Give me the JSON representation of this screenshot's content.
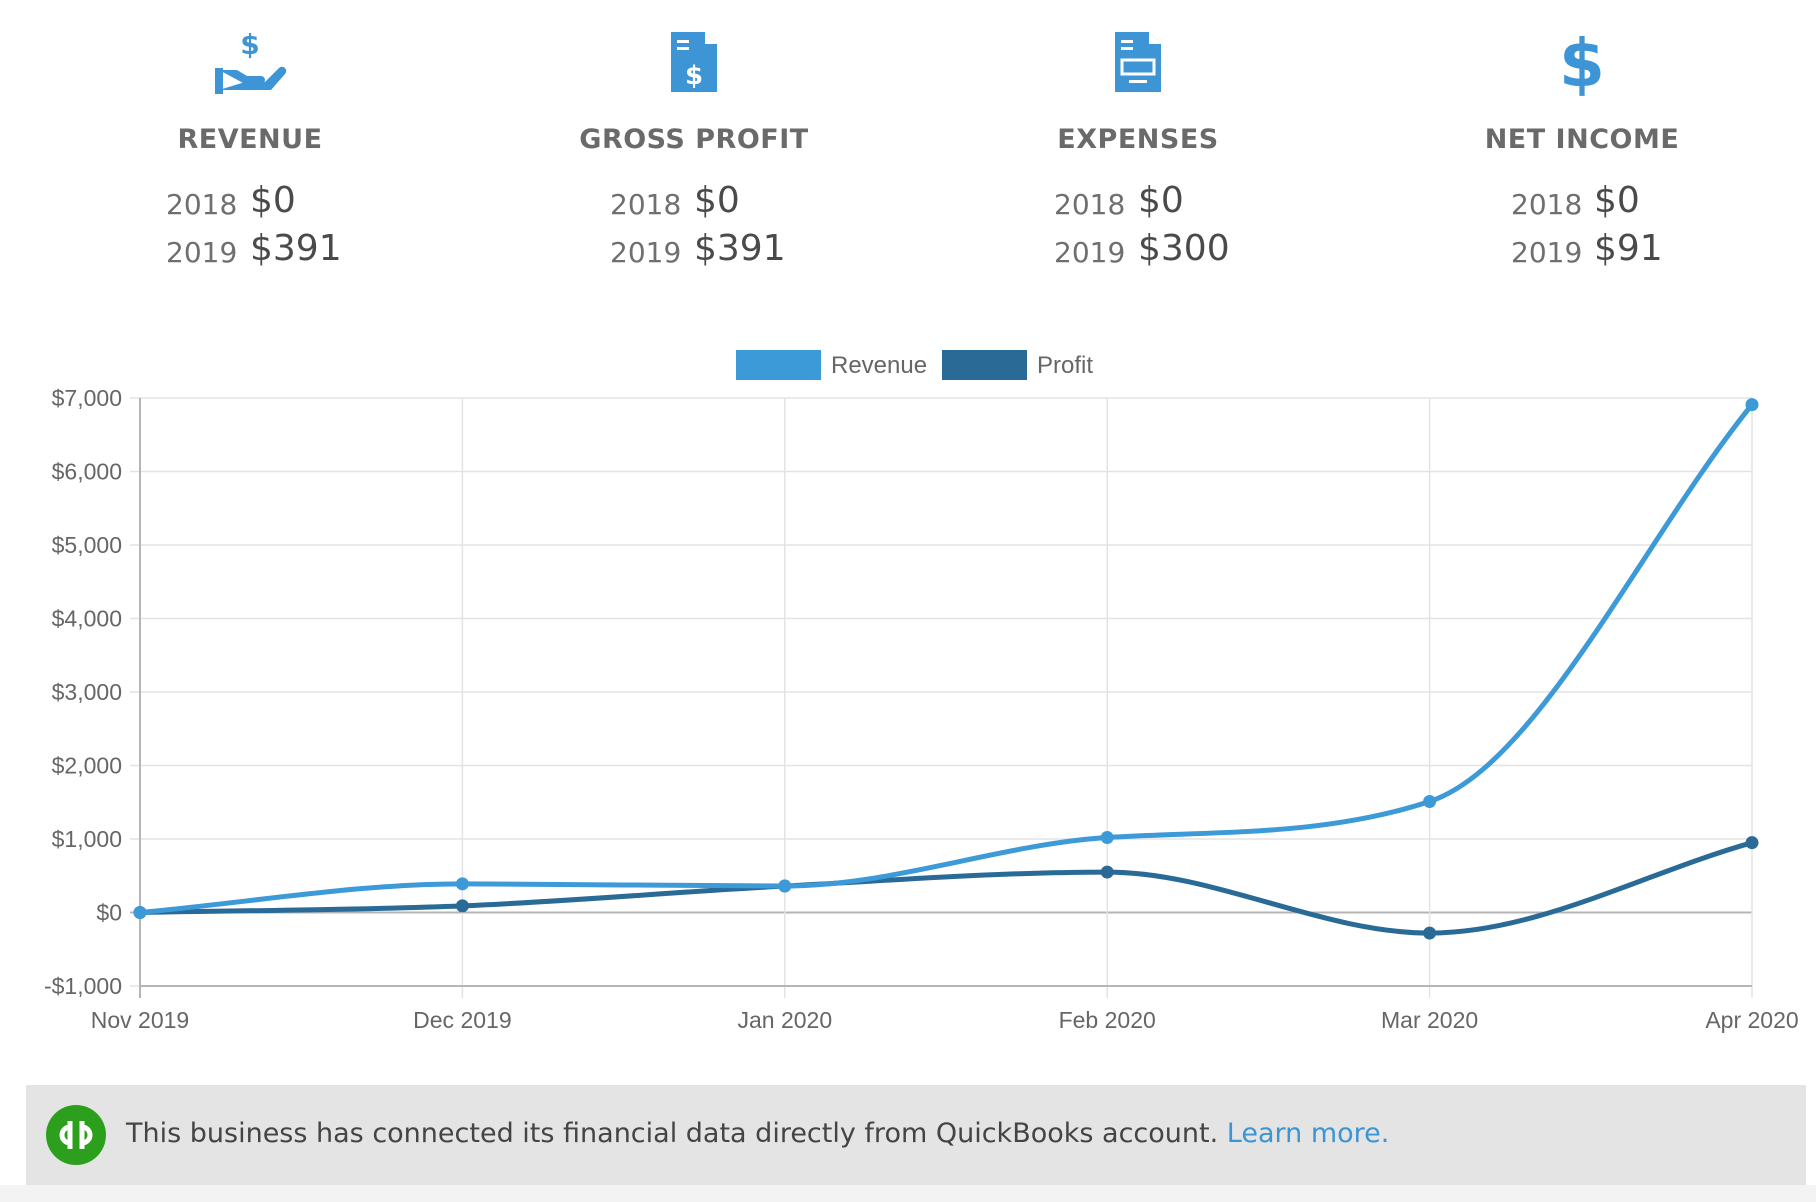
{
  "colors": {
    "icon_blue": "#3d95d6",
    "revenue": "#3d9ad8",
    "profit": "#2a6a96",
    "banner_bg": "#e4e4e4",
    "link": "#3a95d4",
    "qb_green": "#2ca01c"
  },
  "stats": [
    {
      "icon": "hand-dollar-icon",
      "label": "REVENUE",
      "rows": [
        {
          "year": "2018",
          "value": "$0"
        },
        {
          "year": "2019",
          "value": "$391"
        }
      ]
    },
    {
      "icon": "invoice-dollar-icon",
      "label": "GROSS PROFIT",
      "rows": [
        {
          "year": "2018",
          "value": "$0"
        },
        {
          "year": "2019",
          "value": "$391"
        }
      ]
    },
    {
      "icon": "receipt-icon",
      "label": "EXPENSES",
      "rows": [
        {
          "year": "2018",
          "value": "$0"
        },
        {
          "year": "2019",
          "value": "$300"
        }
      ]
    },
    {
      "icon": "dollar-sign-icon",
      "label": "NET INCOME",
      "rows": [
        {
          "year": "2018",
          "value": "$0"
        },
        {
          "year": "2019",
          "value": "$91"
        }
      ]
    }
  ],
  "chart_data": {
    "type": "line",
    "categories": [
      "Nov 2019",
      "Dec 2019",
      "Jan 2020",
      "Feb 2020",
      "Mar 2020",
      "Apr 2020"
    ],
    "series": [
      {
        "name": "Revenue",
        "values": [
          0,
          390,
          360,
          1020,
          1510,
          6910
        ]
      },
      {
        "name": "Profit",
        "values": [
          0,
          90,
          360,
          550,
          -280,
          950
        ]
      }
    ],
    "ylim": [
      -1000,
      7000
    ],
    "yticks": [
      7000,
      6000,
      5000,
      4000,
      3000,
      2000,
      1000,
      0,
      -1000
    ],
    "ytick_labels": [
      "$7,000",
      "$6,000",
      "$5,000",
      "$4,000",
      "$3,000",
      "$2,000",
      "$1,000",
      "$0",
      "-$1,000"
    ],
    "grid": true,
    "legend": "top-center",
    "smooth": true
  },
  "banner": {
    "logo": "quickbooks-logo-icon",
    "text": "This business has connected its financial data directly from QuickBooks account.",
    "link": "Learn more."
  }
}
